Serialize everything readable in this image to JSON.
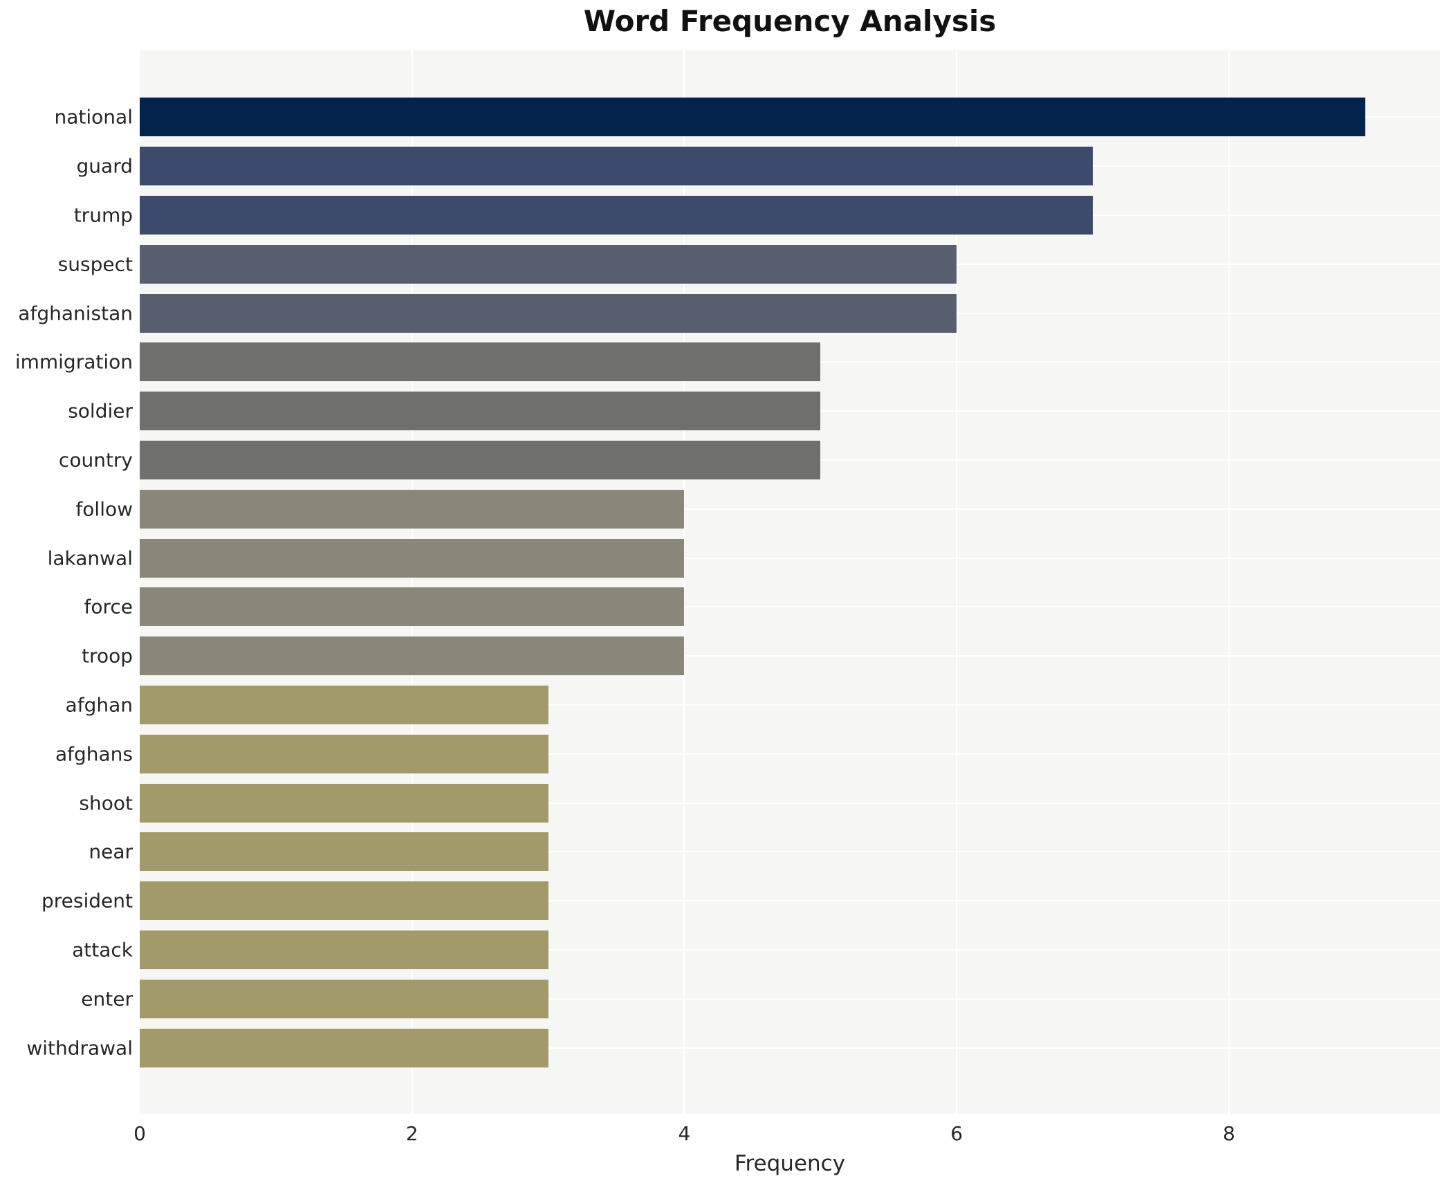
{
  "chart_data": {
    "type": "bar",
    "orientation": "horizontal",
    "title": "Word Frequency Analysis",
    "xlabel": "Frequency",
    "ylabel": "",
    "categories": [
      "national",
      "guard",
      "trump",
      "suspect",
      "afghanistan",
      "immigration",
      "soldier",
      "country",
      "follow",
      "lakanwal",
      "force",
      "troop",
      "afghan",
      "afghans",
      "shoot",
      "near",
      "president",
      "attack",
      "enter",
      "withdrawal"
    ],
    "values": [
      9,
      7,
      7,
      6,
      6,
      5,
      5,
      5,
      4,
      4,
      4,
      4,
      3,
      3,
      3,
      3,
      3,
      3,
      3,
      3
    ],
    "bar_colors": [
      "#02234c",
      "#3e4a6b",
      "#3e4a6b",
      "#575e6e",
      "#575e6e",
      "#6f6f6e",
      "#6f6f6e",
      "#6f6f6e",
      "#8a8778",
      "#8a8778",
      "#8a8778",
      "#8a8778",
      "#a39a6c",
      "#a39a6c",
      "#a39a6c",
      "#a39a6c",
      "#a39a6c",
      "#a39a6c",
      "#a39a6c",
      "#a39a6c"
    ],
    "xlim": [
      0,
      9.55
    ],
    "xticks": [
      0,
      2,
      4,
      6,
      8
    ],
    "grid": "on",
    "grid_color": "#ffffff",
    "plot_background": "#f6f6f5",
    "legend_position": "none"
  }
}
